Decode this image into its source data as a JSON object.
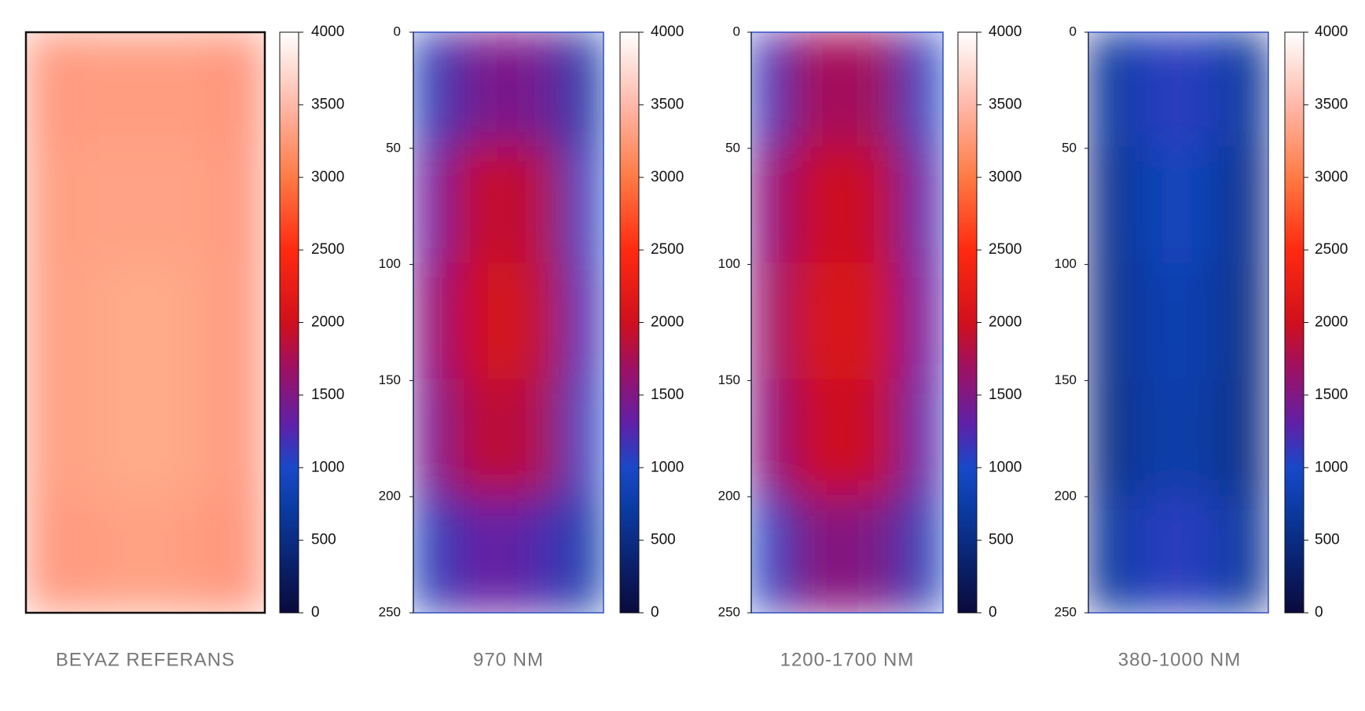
{
  "chart_data": [
    {
      "type": "heatmap",
      "title": "BEYAZ REFERANS",
      "values": [
        [
          2800,
          2850,
          2850,
          2850,
          2750
        ],
        [
          2850,
          2900,
          2900,
          2900,
          2800
        ],
        [
          2850,
          2950,
          3000,
          2950,
          2800
        ],
        [
          2850,
          2950,
          3000,
          2950,
          2800
        ],
        [
          2800,
          2850,
          2900,
          2850,
          2750
        ]
      ],
      "clim": [
        0,
        4000
      ],
      "cticks": [
        0,
        500,
        1000,
        1500,
        2000,
        2500,
        3000,
        3500,
        4000
      ],
      "colorscale": [
        [
          0,
          "#0a0a3c"
        ],
        [
          700,
          "#0a3aa0"
        ],
        [
          1000,
          "#1848c8"
        ],
        [
          1300,
          "#6020a8"
        ],
        [
          1700,
          "#a01060"
        ],
        [
          2000,
          "#d0101c"
        ],
        [
          2500,
          "#ff2a10"
        ],
        [
          3000,
          "#ff7a45"
        ],
        [
          3500,
          "#ffb8a8"
        ],
        [
          4000,
          "#ffffff"
        ]
      ]
    },
    {
      "type": "heatmap",
      "title": "970 NM",
      "values": [
        [
          900,
          1400,
          1500,
          1400,
          800
        ],
        [
          1300,
          1900,
          1950,
          1800,
          1000
        ],
        [
          1500,
          2000,
          2050,
          1900,
          1100
        ],
        [
          1400,
          1850,
          1900,
          1750,
          1000
        ],
        [
          900,
          1300,
          1350,
          1200,
          800
        ]
      ],
      "ylim": [
        0,
        250
      ],
      "yticks": [
        0,
        50,
        100,
        150,
        200,
        250
      ],
      "clim": [
        0,
        4000
      ],
      "cticks": [
        0,
        500,
        1000,
        1500,
        2000,
        2500,
        3000,
        3500,
        4000
      ],
      "colorscale": [
        [
          0,
          "#0a0a3c"
        ],
        [
          700,
          "#0a3aa0"
        ],
        [
          1000,
          "#1848c8"
        ],
        [
          1300,
          "#6020a8"
        ],
        [
          1700,
          "#a01060"
        ],
        [
          2000,
          "#d0101c"
        ],
        [
          2500,
          "#ff2a10"
        ],
        [
          3000,
          "#ff7a45"
        ],
        [
          3500,
          "#ffb8a8"
        ],
        [
          4000,
          "#ffffff"
        ]
      ]
    },
    {
      "type": "heatmap",
      "title": "1200-1700 NM",
      "values": [
        [
          1100,
          1700,
          1750,
          1650,
          1000
        ],
        [
          1500,
          1950,
          2000,
          1900,
          1200
        ],
        [
          1600,
          2050,
          2100,
          2000,
          1300
        ],
        [
          1500,
          1950,
          2000,
          1900,
          1200
        ],
        [
          1000,
          1500,
          1550,
          1450,
          900
        ]
      ],
      "ylim": [
        0,
        250
      ],
      "yticks": [
        0,
        50,
        100,
        150,
        200,
        250
      ],
      "clim": [
        0,
        4000
      ],
      "cticks": [
        0,
        500,
        1000,
        1500,
        2000,
        2500,
        3000,
        3500,
        4000
      ],
      "colorscale": [
        [
          0,
          "#0a0a3c"
        ],
        [
          700,
          "#0a3aa0"
        ],
        [
          1000,
          "#1848c8"
        ],
        [
          1300,
          "#6020a8"
        ],
        [
          1700,
          "#a01060"
        ],
        [
          2000,
          "#d0101c"
        ],
        [
          2500,
          "#ff2a10"
        ],
        [
          3000,
          "#ff7a45"
        ],
        [
          3500,
          "#ffb8a8"
        ],
        [
          4000,
          "#ffffff"
        ]
      ]
    },
    {
      "type": "heatmap",
      "title": "380-1000 NM",
      "values": [
        [
          600,
          900,
          1100,
          900,
          600
        ],
        [
          500,
          800,
          950,
          800,
          500
        ],
        [
          450,
          750,
          850,
          750,
          450
        ],
        [
          450,
          700,
          800,
          700,
          450
        ],
        [
          600,
          900,
          1100,
          900,
          600
        ]
      ],
      "ylim": [
        0,
        250
      ],
      "yticks": [
        0,
        50,
        100,
        150,
        200,
        250
      ],
      "clim": [
        0,
        4000
      ],
      "cticks": [
        0,
        500,
        1000,
        1500,
        2000,
        2500,
        3000,
        3500,
        4000
      ],
      "colorscale": [
        [
          0,
          "#0a0a3c"
        ],
        [
          700,
          "#0a3aa0"
        ],
        [
          1000,
          "#1848c8"
        ],
        [
          1300,
          "#6020a8"
        ],
        [
          1700,
          "#a01060"
        ],
        [
          2000,
          "#d0101c"
        ],
        [
          2500,
          "#ff2a10"
        ],
        [
          3000,
          "#ff7a45"
        ],
        [
          3500,
          "#ffb8a8"
        ],
        [
          4000,
          "#ffffff"
        ]
      ]
    }
  ]
}
